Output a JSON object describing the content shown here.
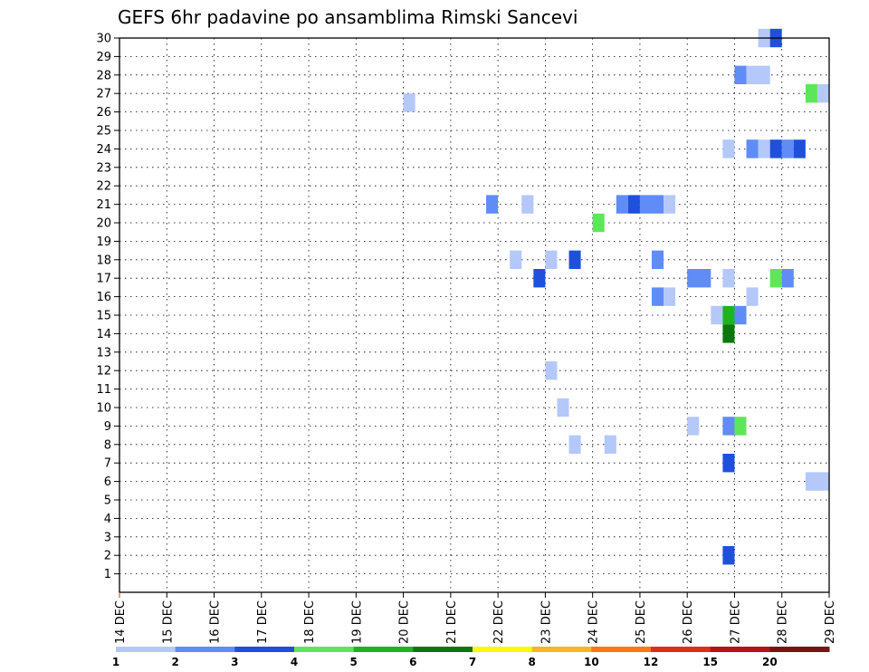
{
  "chart_data": {
    "type": "heatmap",
    "title": "GEFS 6hr padavine po ansamblima Rimski Sancevi",
    "x_ticks": [
      "14 DEC",
      "15 DEC",
      "16 DEC",
      "17 DEC",
      "18 DEC",
      "19 DEC",
      "20 DEC",
      "21 DEC",
      "22 DEC",
      "23 DEC",
      "24 DEC",
      "25 DEC",
      "26 DEC",
      "27 DEC",
      "28 DEC",
      "29 DEC"
    ],
    "y_ticks": [
      1,
      2,
      3,
      4,
      5,
      6,
      7,
      8,
      9,
      10,
      11,
      12,
      13,
      14,
      15,
      16,
      17,
      18,
      19,
      20,
      21,
      22,
      23,
      24,
      25,
      26,
      27,
      28,
      29,
      30
    ],
    "xlim": [
      0,
      15
    ],
    "ylim": [
      0,
      30
    ],
    "grid": true,
    "legend": {
      "position": "bottom",
      "levels": [
        "1",
        "2",
        "3",
        "4",
        "5",
        "6",
        "7",
        "8",
        "10",
        "12",
        "15",
        "20"
      ],
      "colors": [
        "#b4c8fa",
        "#5f8cf5",
        "#1e50dc",
        "#5ee65a",
        "#1eb41e",
        "#0a780a",
        "#fafa0a",
        "#fab428",
        "#fa7814",
        "#dc3214",
        "#b41414",
        "#781414"
      ]
    },
    "cells": [
      {
        "x": 13.5,
        "x2": 13.75,
        "y": 30,
        "color": "#b4c8fa"
      },
      {
        "x": 13.75,
        "x2": 14.0,
        "y": 30,
        "color": "#1e50dc"
      },
      {
        "x": 13.0,
        "x2": 13.25,
        "y": 28,
        "color": "#5f8cf5"
      },
      {
        "x": 13.25,
        "x2": 13.75,
        "y": 28,
        "color": "#b4c8fa"
      },
      {
        "x": 6.0,
        "x2": 6.25,
        "y": 26.5,
        "color": "#b4c8fa"
      },
      {
        "x": 14.5,
        "x2": 14.75,
        "y": 27,
        "color": "#5ee65a"
      },
      {
        "x": 14.75,
        "x2": 15.0,
        "y": 27,
        "color": "#b4c8fa"
      },
      {
        "x": 12.75,
        "x2": 13.0,
        "y": 24,
        "color": "#b4c8fa"
      },
      {
        "x": 13.25,
        "x2": 13.5,
        "y": 24,
        "color": "#5f8cf5"
      },
      {
        "x": 13.5,
        "x2": 13.75,
        "y": 24,
        "color": "#b4c8fa"
      },
      {
        "x": 13.75,
        "x2": 14.0,
        "y": 24,
        "color": "#1e50dc"
      },
      {
        "x": 14.0,
        "x2": 14.25,
        "y": 24,
        "color": "#5f8cf5"
      },
      {
        "x": 14.25,
        "x2": 14.5,
        "y": 24,
        "color": "#1e50dc"
      },
      {
        "x": 7.75,
        "x2": 8.0,
        "y": 21,
        "color": "#5f8cf5"
      },
      {
        "x": 8.5,
        "x2": 8.75,
        "y": 21,
        "color": "#b4c8fa"
      },
      {
        "x": 10.5,
        "x2": 10.75,
        "y": 21,
        "color": "#5f8cf5"
      },
      {
        "x": 10.75,
        "x2": 11.0,
        "y": 21,
        "color": "#1e50dc"
      },
      {
        "x": 11.0,
        "x2": 11.5,
        "y": 21,
        "color": "#5f8cf5"
      },
      {
        "x": 11.5,
        "x2": 11.75,
        "y": 21,
        "color": "#b4c8fa"
      },
      {
        "x": 10.0,
        "x2": 10.25,
        "y": 20,
        "color": "#5ee65a"
      },
      {
        "x": 8.25,
        "x2": 8.5,
        "y": 18,
        "color": "#b4c8fa"
      },
      {
        "x": 9.0,
        "x2": 9.25,
        "y": 18,
        "color": "#b4c8fa"
      },
      {
        "x": 9.5,
        "x2": 9.75,
        "y": 18,
        "color": "#1e50dc"
      },
      {
        "x": 11.25,
        "x2": 11.5,
        "y": 18,
        "color": "#5f8cf5"
      },
      {
        "x": 8.75,
        "x2": 9.0,
        "y": 17,
        "color": "#1e50dc"
      },
      {
        "x": 12.0,
        "x2": 12.5,
        "y": 17,
        "color": "#5f8cf5"
      },
      {
        "x": 12.75,
        "x2": 13.0,
        "y": 17,
        "color": "#b4c8fa"
      },
      {
        "x": 13.75,
        "x2": 14.0,
        "y": 17,
        "color": "#5ee65a"
      },
      {
        "x": 14.0,
        "x2": 14.25,
        "y": 17,
        "color": "#5f8cf5"
      },
      {
        "x": 11.25,
        "x2": 11.5,
        "y": 16,
        "color": "#5f8cf5"
      },
      {
        "x": 11.5,
        "x2": 11.75,
        "y": 16,
        "color": "#b4c8fa"
      },
      {
        "x": 13.25,
        "x2": 13.5,
        "y": 16,
        "color": "#b4c8fa"
      },
      {
        "x": 12.5,
        "x2": 12.75,
        "y": 15,
        "color": "#b4c8fa"
      },
      {
        "x": 12.75,
        "x2": 13.0,
        "y": 15,
        "color": "#1eb41e"
      },
      {
        "x": 13.0,
        "x2": 13.25,
        "y": 15,
        "color": "#5f8cf5"
      },
      {
        "x": 12.75,
        "x2": 13.0,
        "y": 14,
        "color": "#0a780a"
      },
      {
        "x": 9.0,
        "x2": 9.25,
        "y": 12,
        "color": "#b4c8fa"
      },
      {
        "x": 9.25,
        "x2": 9.5,
        "y": 10,
        "color": "#b4c8fa"
      },
      {
        "x": 12.0,
        "x2": 12.25,
        "y": 9,
        "color": "#b4c8fa"
      },
      {
        "x": 12.75,
        "x2": 13.0,
        "y": 9,
        "color": "#5f8cf5"
      },
      {
        "x": 13.0,
        "x2": 13.25,
        "y": 9,
        "color": "#5ee65a"
      },
      {
        "x": 9.5,
        "x2": 9.75,
        "y": 8,
        "color": "#b4c8fa"
      },
      {
        "x": 10.25,
        "x2": 10.5,
        "y": 8,
        "color": "#b4c8fa"
      },
      {
        "x": 12.75,
        "x2": 13.0,
        "y": 7,
        "color": "#1e50dc"
      },
      {
        "x": 14.5,
        "x2": 15.0,
        "y": 6,
        "color": "#b4c8fa"
      },
      {
        "x": 12.75,
        "x2": 13.0,
        "y": 2,
        "color": "#1e50dc"
      }
    ]
  }
}
